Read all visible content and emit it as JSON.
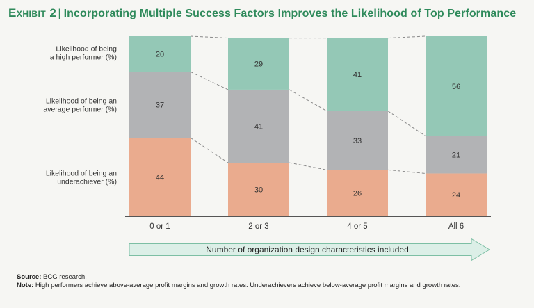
{
  "title": {
    "exhibit": "Exhibit 2",
    "separator": "|",
    "text": "Incorporating Multiple Success Factors Improves the Likelihood of Top Performance"
  },
  "chart_data": {
    "type": "bar",
    "stacked": true,
    "categories": [
      "0 or 1",
      "2 or 3",
      "4 or 5",
      "All 6"
    ],
    "series": [
      {
        "name": "Likelihood of being an underachiever (%)",
        "label_lines": [
          "Likelihood of being an",
          "underachiever (%)"
        ],
        "values": [
          44,
          30,
          26,
          24
        ],
        "color": "#eaab8e"
      },
      {
        "name": "Likelihood of being an average performer (%)",
        "label_lines": [
          "Likelihood of being an",
          "average performer (%)"
        ],
        "values": [
          37,
          41,
          33,
          21
        ],
        "color": "#b2b3b5"
      },
      {
        "name": "Likelihood of being a high performer (%)",
        "label_lines": [
          "Likelihood of being",
          "a high performer (%)"
        ],
        "values": [
          20,
          29,
          41,
          56
        ],
        "color": "#94c8b6"
      }
    ],
    "ylim": [
      0,
      101
    ],
    "xlabel": "Number of organization design characteristics included",
    "ylabel": ""
  },
  "footer": {
    "source_label": "Source:",
    "source_text": "BCG research.",
    "note_label": "Note:",
    "note_text": "High performers achieve above-average profit margins and growth rates. Underachievers achieve below-average profit margins and growth rates."
  }
}
